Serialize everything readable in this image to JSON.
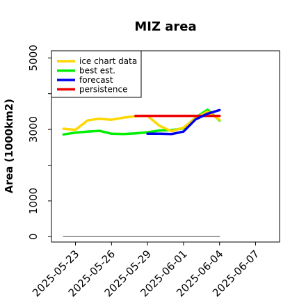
{
  "chart_data": {
    "type": "line",
    "title": "MIZ area",
    "xlabel": "",
    "ylabel": "Area (1000km2)",
    "x_ticks": [
      "2025-05-23",
      "2025-05-26",
      "2025-05-29",
      "2025-06-01",
      "2025-06-04",
      "2025-06-07"
    ],
    "highlight_tick": "2025-05-29",
    "highlight_color": "#228B22",
    "y_ticks": [
      0,
      1000,
      3000,
      5000
    ],
    "ylim": [
      -150,
      5200
    ],
    "xlim": [
      "2025-05-21",
      "2025-06-09"
    ],
    "grid": false,
    "legend_position": "top-left",
    "series": [
      {
        "name": "ice chart data",
        "color": "#FFD700",
        "x": [
          "2025-05-22",
          "2025-05-23",
          "2025-05-24",
          "2025-05-25",
          "2025-05-26",
          "2025-05-27",
          "2025-05-28",
          "2025-05-29",
          "2025-05-30",
          "2025-05-31",
          "2025-06-01",
          "2025-06-02",
          "2025-06-03",
          "2025-06-04"
        ],
        "values": [
          3020,
          2990,
          3250,
          3300,
          3270,
          3330,
          3370,
          3380,
          3100,
          2950,
          3050,
          3320,
          3500,
          3270
        ]
      },
      {
        "name": "best est.",
        "color": "#00EE00",
        "x": [
          "2025-05-22",
          "2025-05-23",
          "2025-05-24",
          "2025-05-25",
          "2025-05-26",
          "2025-05-27",
          "2025-05-28",
          "2025-05-29",
          "2025-05-30",
          "2025-05-31",
          "2025-06-01",
          "2025-06-02",
          "2025-06-03",
          "2025-06-04"
        ],
        "values": [
          2860,
          2910,
          2940,
          2960,
          2880,
          2870,
          2890,
          2920,
          2970,
          2980,
          3030,
          3330,
          3550,
          3250
        ]
      },
      {
        "name": "forecast",
        "color": "#0000EE",
        "x": [
          "2025-05-29",
          "2025-05-30",
          "2025-05-31",
          "2025-06-01",
          "2025-06-02",
          "2025-06-03",
          "2025-06-04"
        ],
        "values": [
          2880,
          2880,
          2870,
          2940,
          3280,
          3440,
          3540
        ]
      },
      {
        "name": "persistence",
        "color": "#EE0000",
        "x": [
          "2025-05-28",
          "2025-06-04"
        ],
        "values": [
          3380,
          3380
        ]
      },
      {
        "name": "",
        "color": "#808080",
        "x": [
          "2025-05-22",
          "2025-06-04"
        ],
        "values": [
          0,
          0
        ]
      }
    ]
  }
}
